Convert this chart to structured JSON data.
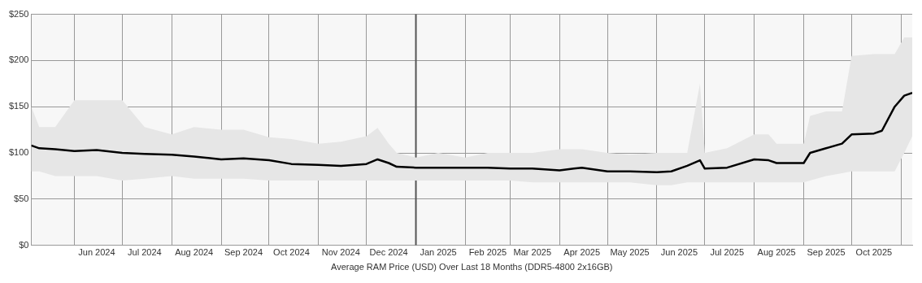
{
  "chart_data": {
    "type": "line",
    "xlabel": "Average RAM Price (USD) Over Last 18 Months (DDR5-4800 2x16GB)",
    "x": [
      "2024-05-05",
      "2024-05-10",
      "2024-05-20",
      "2024-06-01",
      "2024-06-15",
      "2024-07-01",
      "2024-07-15",
      "2024-08-01",
      "2024-08-15",
      "2024-09-01",
      "2024-09-15",
      "2024-10-01",
      "2024-10-15",
      "2024-11-01",
      "2024-11-15",
      "2024-12-01",
      "2024-12-08",
      "2024-12-15",
      "2024-12-20",
      "2025-01-01",
      "2025-01-15",
      "2025-02-01",
      "2025-02-15",
      "2025-03-01",
      "2025-03-15",
      "2025-04-01",
      "2025-04-10",
      "2025-04-15",
      "2025-05-01",
      "2025-05-15",
      "2025-06-01",
      "2025-06-10",
      "2025-06-20",
      "2025-06-28",
      "2025-07-01",
      "2025-07-15",
      "2025-08-01",
      "2025-08-10",
      "2025-08-15",
      "2025-09-01",
      "2025-09-05",
      "2025-09-15",
      "2025-09-25",
      "2025-10-01",
      "2025-10-15",
      "2025-10-20",
      "2025-10-28",
      "2025-11-03",
      "2025-11-08"
    ],
    "series": [
      {
        "color": "#000000",
        "values": [
          108,
          105,
          104,
          102,
          103,
          100,
          99,
          98,
          96,
          93,
          94,
          92,
          88,
          87,
          86,
          88,
          93,
          89,
          85,
          84,
          84,
          84,
          84,
          83,
          83,
          81,
          83,
          84,
          80,
          80,
          79,
          80,
          86,
          92,
          83,
          84,
          93,
          92,
          89,
          89,
          100,
          105,
          110,
          120,
          121,
          124,
          150,
          162,
          165
        ],
        "lower": [
          80,
          80,
          75,
          75,
          75,
          70,
          72,
          75,
          72,
          72,
          72,
          70,
          70,
          70,
          70,
          70,
          70,
          70,
          70,
          70,
          70,
          70,
          70,
          70,
          68,
          68,
          68,
          68,
          68,
          68,
          65,
          65,
          68,
          68,
          68,
          68,
          68,
          68,
          68,
          68,
          70,
          75,
          78,
          80,
          80,
          80,
          80,
          100,
          118
        ],
        "upper": [
          150,
          128,
          128,
          157,
          157,
          157,
          128,
          120,
          128,
          125,
          125,
          117,
          115,
          110,
          112,
          118,
          127,
          110,
          100,
          95,
          100,
          95,
          100,
          100,
          100,
          104,
          104,
          104,
          100,
          98,
          100,
          100,
          100,
          175,
          100,
          105,
          120,
          120,
          110,
          110,
          140,
          145,
          145,
          205,
          207,
          207,
          207,
          225,
          225
        ]
      }
    ],
    "xlim": [
      "2024-05-05",
      "2025-11-08"
    ],
    "xticks": [
      {
        "value": "2024-06-01",
        "label": null
      },
      {
        "value": "2024-06-15",
        "label": "Jun 2024"
      },
      {
        "value": "2024-07-01",
        "label": null
      },
      {
        "value": "2024-07-15",
        "label": "Jul 2024"
      },
      {
        "value": "2024-08-01",
        "label": null
      },
      {
        "value": "2024-08-15",
        "label": "Aug 2024"
      },
      {
        "value": "2024-09-01",
        "label": null
      },
      {
        "value": "2024-09-15",
        "label": "Sep 2024"
      },
      {
        "value": "2024-10-01",
        "label": null
      },
      {
        "value": "2024-10-15",
        "label": "Oct 2024"
      },
      {
        "value": "2024-11-01",
        "label": null
      },
      {
        "value": "2024-11-15",
        "label": "Nov 2024"
      },
      {
        "value": "2024-12-01",
        "label": null
      },
      {
        "value": "2024-12-15",
        "label": "Dec 2024"
      },
      {
        "value": "2025-01-15",
        "label": "Jan 2025"
      },
      {
        "value": "2025-02-01",
        "label": null
      },
      {
        "value": "2025-02-15",
        "label": "Feb 2025"
      },
      {
        "value": "2025-03-01",
        "label": null
      },
      {
        "value": "2025-03-15",
        "label": "Mar 2025"
      },
      {
        "value": "2025-04-01",
        "label": null
      },
      {
        "value": "2025-04-15",
        "label": "Apr 2025"
      },
      {
        "value": "2025-05-01",
        "label": null
      },
      {
        "value": "2025-05-15",
        "label": "May 2025"
      },
      {
        "value": "2025-06-01",
        "label": null
      },
      {
        "value": "2025-06-15",
        "label": "Jun 2025"
      },
      {
        "value": "2025-07-01",
        "label": null
      },
      {
        "value": "2025-07-15",
        "label": "Jul 2025"
      },
      {
        "value": "2025-08-01",
        "label": null
      },
      {
        "value": "2025-08-15",
        "label": "Aug 2025"
      },
      {
        "value": "2025-09-01",
        "label": null
      },
      {
        "value": "2025-09-15",
        "label": "Sep 2025"
      },
      {
        "value": "2025-10-01",
        "label": null
      },
      {
        "value": "2025-10-15",
        "label": "Oct 2025"
      },
      {
        "value": "2025-11-01",
        "label": null
      }
    ],
    "ylim": [
      0,
      250
    ],
    "yticks": [
      {
        "value": 0,
        "label": "$0"
      },
      {
        "value": 50,
        "label": "$50"
      },
      {
        "value": 100,
        "label": "$100"
      },
      {
        "value": 150,
        "label": "$150"
      },
      {
        "value": 200,
        "label": "$200"
      },
      {
        "value": 250,
        "label": "$250"
      }
    ],
    "ref_lines": [
      {
        "axis": "x",
        "value": "2025-01-01",
        "color": "#555555"
      }
    ],
    "grid": true,
    "marker": "none",
    "line_style": "solid"
  }
}
